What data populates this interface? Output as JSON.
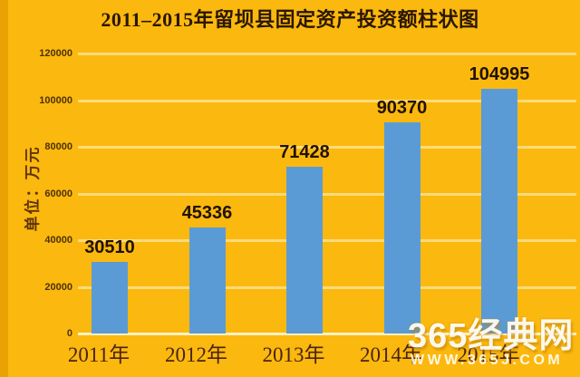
{
  "page": {
    "background_color": "#fbb80e",
    "accent_bar_color": "#5b9bd5"
  },
  "title": "2011–2015年留坝县固定资产投资额柱状图",
  "y_axis": {
    "unit_label": "单位：万元",
    "ticks": [
      "120000",
      "100000",
      "80000",
      "60000",
      "40000",
      "20000",
      "0"
    ]
  },
  "chart_data": {
    "type": "bar",
    "title": "2011–2015年留坝县固定资产投资额柱状图",
    "categories": [
      "2011年",
      "2012年",
      "2013年",
      "2014年",
      "2015年"
    ],
    "values": [
      30510,
      45336,
      71428,
      90370,
      104995
    ],
    "xlabel": "",
    "ylabel": "单位：万元",
    "ylim": [
      0,
      120000
    ],
    "grid": true,
    "legend": false,
    "bar_color": "#5b9bd5",
    "background_color": "#fbb80e",
    "data_labels": true
  },
  "watermark": {
    "brand": "365经典网",
    "url": "WWW.365J.COM"
  }
}
